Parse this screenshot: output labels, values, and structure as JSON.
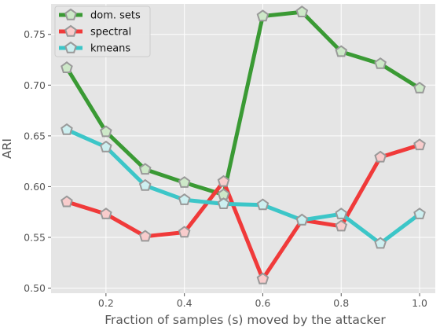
{
  "chart_data": {
    "type": "line",
    "xlabel": "Fraction of samples (s) moved by the attacker",
    "ylabel": "ARI",
    "xlim": [
      0.06,
      1.04
    ],
    "ylim": [
      0.495,
      0.78
    ],
    "x_ticks": [
      0.2,
      0.4,
      0.6,
      0.8,
      1.0
    ],
    "x_tick_labels": [
      "0.2",
      "0.4",
      "0.6",
      "0.8",
      "1.0"
    ],
    "y_ticks": [
      0.5,
      0.55,
      0.6,
      0.65,
      0.7,
      0.75
    ],
    "y_tick_labels": [
      "0.50",
      "0.55",
      "0.60",
      "0.65",
      "0.70",
      "0.75"
    ],
    "grid": true,
    "legend_position": "upper-left",
    "x": [
      0.1,
      0.2,
      0.3,
      0.4,
      0.5,
      0.6,
      0.7,
      0.8,
      0.9,
      1.0
    ],
    "series": [
      {
        "name": "dom. sets",
        "color": "#3a9a34",
        "marker_fill": "#cde8c8",
        "values": [
          0.717,
          0.654,
          0.617,
          0.604,
          0.592,
          0.768,
          0.772,
          0.733,
          0.721,
          0.697
        ]
      },
      {
        "name": "spectral",
        "color": "#f03a3a",
        "marker_fill": "#f8cccc",
        "values": [
          0.585,
          0.573,
          0.551,
          0.555,
          0.605,
          0.509,
          0.567,
          0.561,
          0.629,
          0.641
        ]
      },
      {
        "name": "kmeans",
        "color": "#3cc6c8",
        "marker_fill": "#cdeff0",
        "values": [
          0.656,
          0.639,
          0.601,
          0.587,
          0.583,
          0.582,
          0.567,
          0.573,
          0.544,
          0.573
        ]
      }
    ],
    "marker_edge_color": "#999999"
  }
}
